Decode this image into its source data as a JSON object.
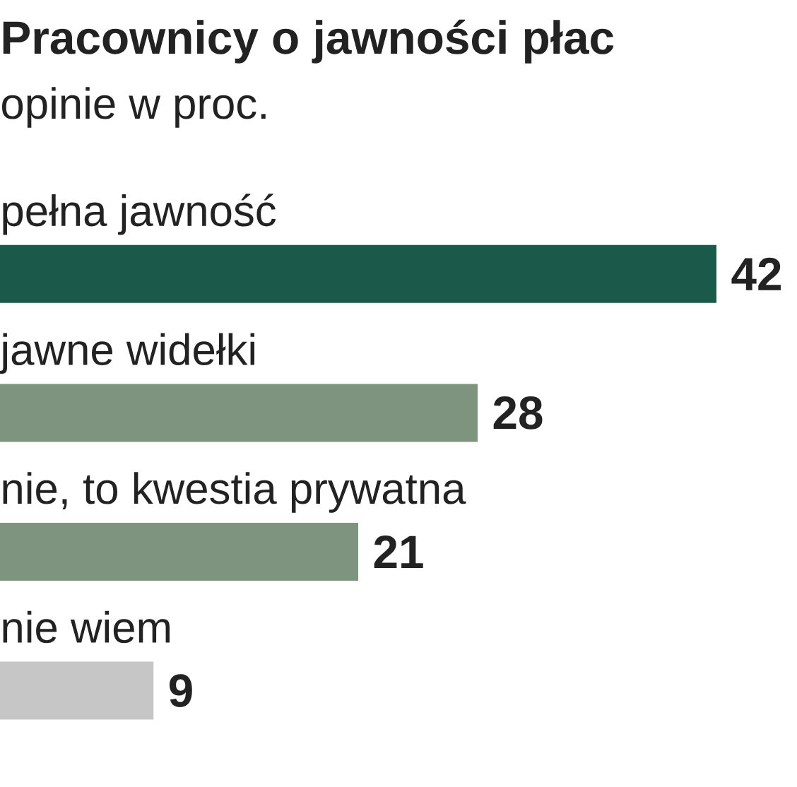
{
  "chart_data": {
    "type": "bar",
    "orientation": "horizontal",
    "title": "Pracownicy o jawności płac",
    "subtitle": "opinie w proc.",
    "categories": [
      "pełna jawność",
      "jawne widełki",
      "nie, to kwestia prywatna",
      "nie wiem"
    ],
    "values": [
      42,
      28,
      21,
      9
    ],
    "colors": [
      "#1b5a4a",
      "#7f947f",
      "#7f947f",
      "#c6c6c6"
    ],
    "data_labels": true
  }
}
